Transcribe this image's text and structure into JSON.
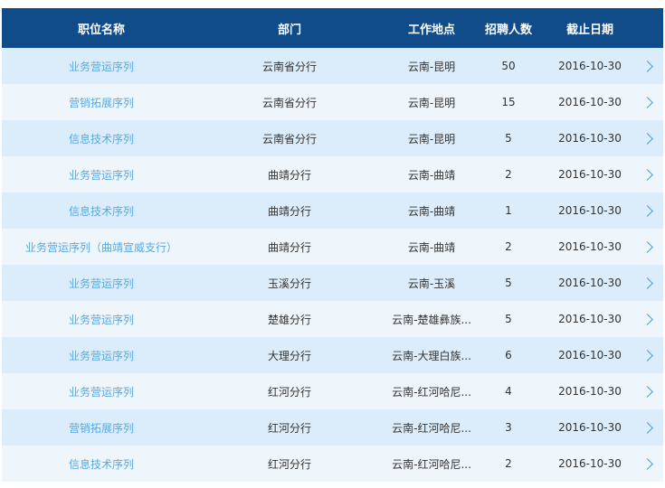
{
  "header": {
    "name": "职位名称",
    "dept": "部门",
    "location": "工作地点",
    "count": "招聘人数",
    "deadline": "截止日期"
  },
  "rows": [
    {
      "name": "业务营运序列",
      "dept": "云南省分行",
      "location": "云南-昆明",
      "count": "50",
      "deadline": "2016-10-30"
    },
    {
      "name": "营销拓展序列",
      "dept": "云南省分行",
      "location": "云南-昆明",
      "count": "15",
      "deadline": "2016-10-30"
    },
    {
      "name": "信息技术序列",
      "dept": "云南省分行",
      "location": "云南-昆明",
      "count": "5",
      "deadline": "2016-10-30"
    },
    {
      "name": "业务营运序列",
      "dept": "曲靖分行",
      "location": "云南-曲靖",
      "count": "2",
      "deadline": "2016-10-30"
    },
    {
      "name": "信息技术序列",
      "dept": "曲靖分行",
      "location": "云南-曲靖",
      "count": "1",
      "deadline": "2016-10-30"
    },
    {
      "name": "业务营运序列（曲靖宣威支行）",
      "dept": "曲靖分行",
      "location": "云南-曲靖",
      "count": "2",
      "deadline": "2016-10-30"
    },
    {
      "name": "业务营运序列",
      "dept": "玉溪分行",
      "location": "云南-玉溪",
      "count": "5",
      "deadline": "2016-10-30"
    },
    {
      "name": "业务营运序列",
      "dept": "楚雄分行",
      "location": "云南-楚雄彝族...",
      "count": "5",
      "deadline": "2016-10-30"
    },
    {
      "name": "业务营运序列",
      "dept": "大理分行",
      "location": "云南-大理白族...",
      "count": "6",
      "deadline": "2016-10-30"
    },
    {
      "name": "业务营运序列",
      "dept": "红河分行",
      "location": "云南-红河哈尼...",
      "count": "4",
      "deadline": "2016-10-30"
    },
    {
      "name": "营销拓展序列",
      "dept": "红河分行",
      "location": "云南-红河哈尼...",
      "count": "3",
      "deadline": "2016-10-30"
    },
    {
      "name": "信息技术序列",
      "dept": "红河分行",
      "location": "云南-红河哈尼...",
      "count": "2",
      "deadline": "2016-10-30"
    }
  ],
  "colors": {
    "header_bg": "#114c8a",
    "row_odd": "#dbedfa",
    "row_even": "#eef5fb",
    "link": "#5aa9e0"
  },
  "icons": {
    "row_action": "chevron-right-icon"
  }
}
